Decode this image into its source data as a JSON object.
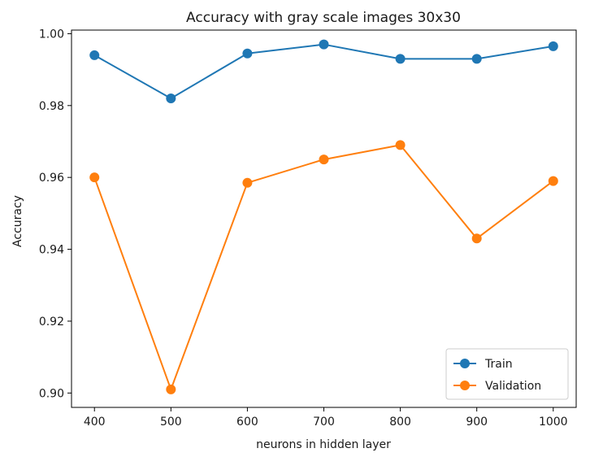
{
  "chart_data": {
    "type": "line",
    "title": "Accuracy with gray scale images 30x30",
    "xlabel": "neurons in hidden layer",
    "ylabel": "Accuracy",
    "x": [
      400,
      500,
      600,
      700,
      800,
      900,
      1000
    ],
    "xticks": [
      "400",
      "500",
      "600",
      "700",
      "800",
      "900",
      "1000"
    ],
    "xlim": [
      370,
      1030
    ],
    "yticks": [
      "0.90",
      "0.92",
      "0.94",
      "0.96",
      "0.98",
      "1.00"
    ],
    "ylim": [
      0.896,
      1.001
    ],
    "grid": false,
    "legend_position": "lower-right",
    "series": [
      {
        "name": "Train",
        "color": "#1f77b4",
        "marker": "circle",
        "values": [
          0.994,
          0.982,
          0.9945,
          0.997,
          0.993,
          0.993,
          0.9965
        ]
      },
      {
        "name": "Validation",
        "color": "#ff7f0e",
        "marker": "circle",
        "values": [
          0.96,
          0.901,
          0.9585,
          0.965,
          0.969,
          0.943,
          0.959
        ]
      }
    ]
  }
}
